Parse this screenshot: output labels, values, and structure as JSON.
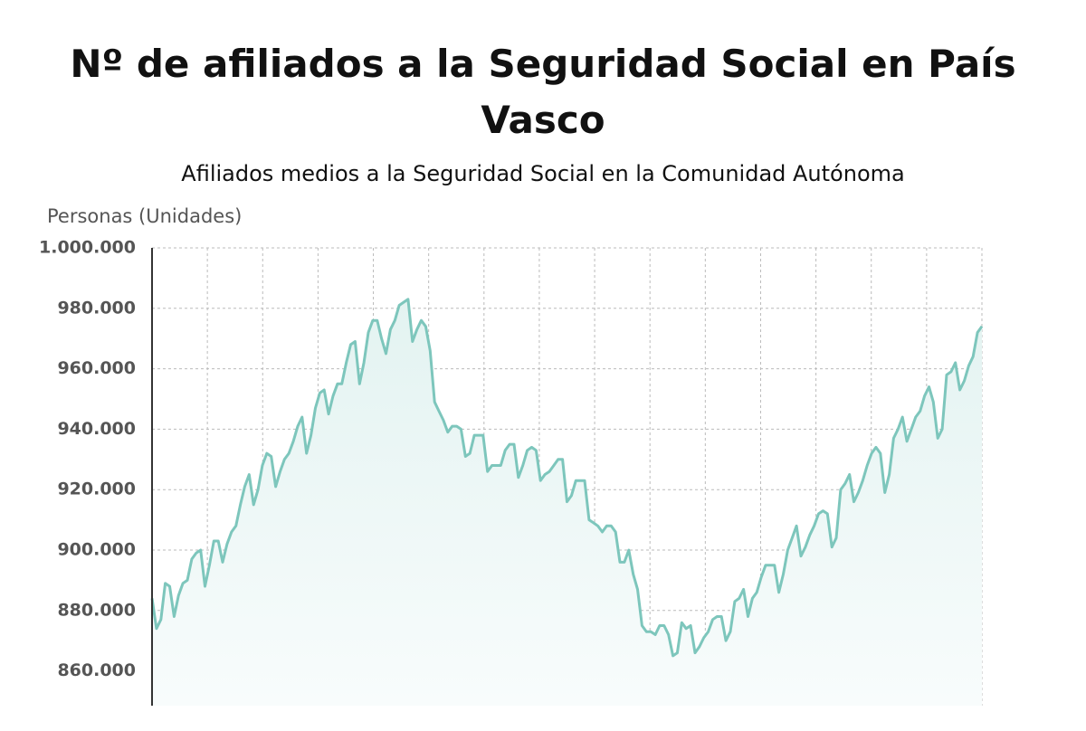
{
  "chart_data": {
    "type": "line",
    "title": "Nº de afiliados a la Seguridad Social en País Vasco",
    "subtitle": "Afiliados medios a la Seguridad Social en la Comunidad Autónoma",
    "y_label": "Personas (Unidades)",
    "ylim": [
      848500,
      1000000
    ],
    "yticks": [
      {
        "value": 860000,
        "label": "860.000"
      },
      {
        "value": 880000,
        "label": "880.000"
      },
      {
        "value": 900000,
        "label": "900.000"
      },
      {
        "value": 920000,
        "label": "920.000"
      },
      {
        "value": 940000,
        "label": "940.000"
      },
      {
        "value": 960000,
        "label": "960.000"
      },
      {
        "value": 980000,
        "label": "980.000"
      },
      {
        "value": 1000000,
        "label": "1.000.000"
      }
    ],
    "grid": true,
    "color": "#7dc6bc",
    "values": [
      884000,
      874000,
      877000,
      889000,
      888000,
      878000,
      885000,
      889000,
      890000,
      897000,
      899000,
      900000,
      888000,
      895000,
      903000,
      903000,
      896000,
      902000,
      906000,
      908000,
      915000,
      921000,
      925000,
      915000,
      920000,
      928000,
      932000,
      931000,
      921000,
      926000,
      930000,
      932000,
      936000,
      941000,
      944000,
      932000,
      938000,
      947000,
      952000,
      953000,
      945000,
      951000,
      955000,
      955000,
      962000,
      968000,
      969000,
      955000,
      962000,
      972000,
      976000,
      976000,
      970000,
      965000,
      973000,
      976000,
      981000,
      982000,
      983000,
      969000,
      973000,
      976000,
      974000,
      966000,
      949000,
      946000,
      943000,
      939000,
      941000,
      941000,
      940000,
      931000,
      932000,
      938000,
      938000,
      938000,
      926000,
      928000,
      928000,
      928000,
      933000,
      935000,
      935000,
      924000,
      928000,
      933000,
      934000,
      933000,
      923000,
      925000,
      926000,
      928000,
      930000,
      930000,
      916000,
      918000,
      923000,
      923000,
      923000,
      910000,
      909000,
      908000,
      906000,
      908000,
      908000,
      906000,
      896000,
      896000,
      900000,
      892000,
      887000,
      875000,
      873000,
      873000,
      872000,
      875000,
      875000,
      872000,
      865000,
      866000,
      876000,
      874000,
      875000,
      866000,
      868000,
      871000,
      873000,
      877000,
      878000,
      878000,
      870000,
      873000,
      883000,
      884000,
      887000,
      878000,
      884000,
      886000,
      891000,
      895000,
      895000,
      895000,
      886000,
      892000,
      900000,
      904000,
      908000,
      898000,
      901000,
      905000,
      908000,
      912000,
      913000,
      912000,
      901000,
      904000,
      920000,
      922000,
      925000,
      916000,
      919000,
      923000,
      928000,
      932000,
      934000,
      932000,
      919000,
      925000,
      937000,
      940000,
      944000,
      936000,
      940000,
      944000,
      946000,
      951000,
      954000,
      949000,
      937000,
      940000,
      958000,
      959000,
      962000,
      953000,
      956000,
      961000,
      964000,
      972000,
      974000
    ]
  }
}
